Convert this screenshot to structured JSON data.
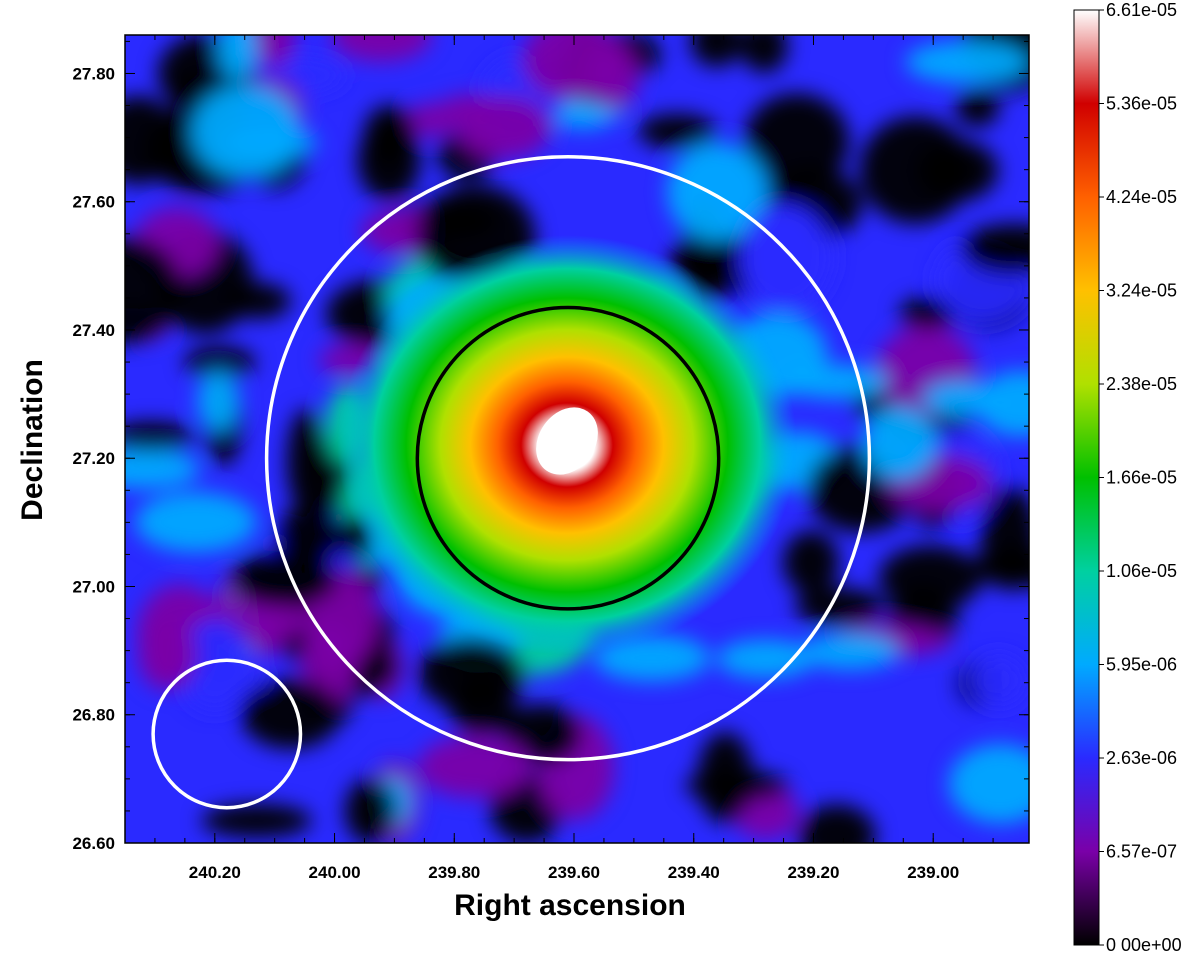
{
  "chart_data": {
    "type": "heatmap",
    "title": "",
    "xlabel": "Right ascension",
    "ylabel": "Declination",
    "xlim": [
      240.35,
      238.84
    ],
    "ylim": [
      26.6,
      27.86
    ],
    "x_ticks": [
      240.2,
      240.0,
      239.8,
      239.6,
      239.4,
      239.2,
      239.0
    ],
    "x_tick_labels": [
      "240.20",
      "240.00",
      "239.80",
      "239.60",
      "239.40",
      "239.20",
      "239.00"
    ],
    "y_ticks": [
      26.6,
      26.8,
      27.0,
      27.2,
      27.4,
      27.6,
      27.8
    ],
    "y_tick_labels": [
      "26.60",
      "26.80",
      "27.00",
      "27.20",
      "27.40",
      "27.60",
      "27.80"
    ],
    "peak": {
      "ra": 239.6,
      "dec": 27.21,
      "value": 6.61e-05
    },
    "colorbar": {
      "min": 0,
      "max": 6.61e-05,
      "tick_labels": [
        "0 00e+00",
        "6.57e-07",
        "2.63e-06",
        "5.95e-06",
        "1.06e-05",
        "1.66e-05",
        "2.38e-05",
        "3.24e-05",
        "4.24e-05",
        "5.36e-05",
        "6.61e-05"
      ],
      "colors": [
        "#000000",
        "#7a00a8",
        "#2a2aff",
        "#00aaff",
        "#00d0a0",
        "#00c000",
        "#b0e000",
        "#ffc000",
        "#ff6000",
        "#d00000",
        "#ffffff"
      ]
    },
    "grid": false,
    "regions": [
      {
        "name": "outer",
        "ra": 239.61,
        "dec": 27.2,
        "radius_deg": 0.47,
        "color": "#ffffff"
      },
      {
        "name": "inner",
        "ra": 239.61,
        "dec": 27.2,
        "radius_deg": 0.235,
        "color": "#000000"
      },
      {
        "name": "psf",
        "ra": 240.18,
        "dec": 26.77,
        "radius_deg": 0.115,
        "color": "#ffffff"
      }
    ]
  }
}
